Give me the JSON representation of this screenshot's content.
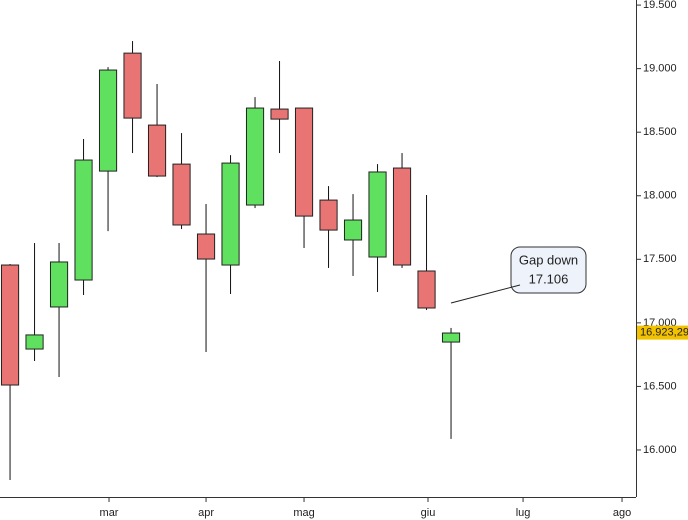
{
  "chart_data": {
    "type": "candlestick",
    "x": [
      0,
      1,
      2,
      3,
      4,
      5,
      6,
      7,
      8,
      9,
      10,
      11,
      12,
      13,
      14,
      15,
      16,
      17,
      18
    ],
    "series": [
      {
        "open": [
          17455,
          16794,
          17125,
          17337,
          18194,
          19122,
          18556,
          18249,
          17699,
          17455,
          17927,
          18682,
          18690,
          17966,
          17652,
          17518,
          18218,
          17408,
          16849
        ],
        "high": [
          17463,
          17628,
          17628,
          18446,
          19012,
          19217,
          18879,
          18493,
          17935,
          18320,
          18776,
          19060,
          18690,
          18076,
          18013,
          18249,
          18336,
          18006,
          16960
        ],
        "low": [
          15764,
          16700,
          16574,
          17219,
          17722,
          18336,
          18147,
          17738,
          16771,
          17227,
          17903,
          18336,
          17589,
          17432,
          17369,
          17243,
          17432,
          17101,
          16087
        ],
        "close": [
          16511,
          16905,
          17479,
          18281,
          18989,
          18611,
          18155,
          17770,
          17502,
          18257,
          18690,
          18603,
          17840,
          17730,
          17809,
          18187,
          17455,
          17117,
          16920
        ]
      }
    ],
    "up_color": "#5fe05f",
    "down_color": "#e87474",
    "xlim": [
      -0.41,
      25.55
    ],
    "xticks": [
      {
        "value": 4.04,
        "label": "mar"
      },
      {
        "value": 8.0,
        "label": "apr"
      },
      {
        "value": 12.0,
        "label": "mag"
      },
      {
        "value": 17.06,
        "label": "giu"
      },
      {
        "value": 20.94,
        "label": "lug"
      },
      {
        "value": 24.98,
        "label": "ago"
      }
    ],
    "ylim": [
      15630,
      19540
    ],
    "yticks": [
      {
        "value": 16000,
        "label": "16.000"
      },
      {
        "value": 16500,
        "label": "16.500"
      },
      {
        "value": 17000,
        "label": "17.000"
      },
      {
        "value": 17500,
        "label": "17.500"
      },
      {
        "value": 18000,
        "label": "18.000"
      },
      {
        "value": 18500,
        "label": "18.500"
      },
      {
        "value": 19000,
        "label": "19.000"
      },
      {
        "value": 19500,
        "label": "19.500"
      }
    ],
    "last_price": {
      "value": 16923.29,
      "label": "16.923,29"
    },
    "annotation": {
      "lines": [
        "Gap down",
        "17.106"
      ]
    }
  }
}
